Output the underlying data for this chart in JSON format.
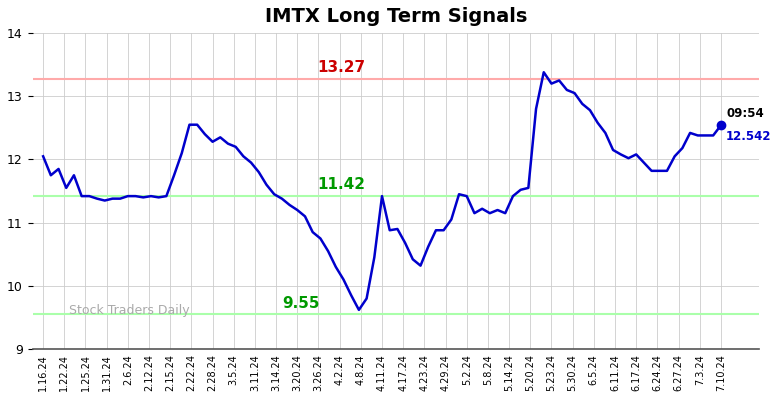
{
  "title": "IMTX Long Term Signals",
  "x_labels": [
    "1.16.24",
    "1.22.24",
    "1.25.24",
    "1.31.24",
    "2.6.24",
    "2.12.24",
    "2.15.24",
    "2.22.24",
    "2.28.24",
    "3.5.24",
    "3.11.24",
    "3.14.24",
    "3.20.24",
    "3.26.24",
    "4.2.24",
    "4.8.24",
    "4.11.24",
    "4.17.24",
    "4.23.24",
    "4.29.24",
    "5.2.24",
    "5.8.24",
    "5.14.24",
    "5.20.24",
    "5.23.24",
    "5.30.24",
    "6.5.24",
    "6.11.24",
    "6.17.24",
    "6.24.24",
    "6.27.24",
    "7.3.24",
    "7.10.24"
  ],
  "y_values": [
    12.05,
    11.75,
    11.85,
    11.55,
    11.75,
    11.42,
    11.42,
    11.38,
    11.35,
    11.38,
    11.38,
    11.42,
    11.42,
    11.4,
    11.42,
    11.4,
    11.42,
    11.75,
    12.1,
    12.55,
    12.55,
    12.4,
    12.28,
    12.35,
    12.25,
    12.2,
    12.05,
    11.95,
    11.8,
    11.6,
    11.45,
    11.38,
    11.28,
    11.2,
    11.1,
    10.85,
    10.75,
    10.55,
    10.3,
    10.1,
    9.85,
    9.62,
    9.8,
    10.45,
    11.42,
    10.88,
    10.9,
    10.68,
    10.42,
    10.32,
    10.62,
    10.88,
    10.88,
    11.05,
    11.45,
    11.42,
    11.15,
    11.22,
    11.15,
    11.2,
    11.15,
    11.42,
    11.52,
    11.55,
    12.8,
    13.38,
    13.2,
    13.25,
    13.1,
    13.05,
    12.88,
    12.78,
    12.58,
    12.42,
    12.15,
    12.08,
    12.02,
    12.08,
    11.95,
    11.82,
    11.82,
    11.82,
    12.05,
    12.18,
    12.42,
    12.38,
    12.38,
    12.38,
    12.54
  ],
  "resistance_level": 13.27,
  "support_level_upper": 11.42,
  "support_level_lower": 9.55,
  "resistance_color": "#ffaaaa",
  "support_upper_color": "#aaffaa",
  "support_lower_color": "#aaffaa",
  "resistance_label_color": "#cc0000",
  "support_upper_label_color": "#009900",
  "support_lower_label_color": "#009900",
  "line_color": "#0000cc",
  "last_price": 12.542,
  "last_time": "09:54",
  "annotation_color": "#0000cc",
  "watermark": "Stock Traders Daily",
  "watermark_color": "#aaaaaa",
  "ylim": [
    9.0,
    14.0
  ],
  "yticks": [
    9,
    10,
    11,
    12,
    13,
    14
  ],
  "background_color": "#ffffff",
  "grid_color": "#cccccc",
  "title_fontsize": 14
}
